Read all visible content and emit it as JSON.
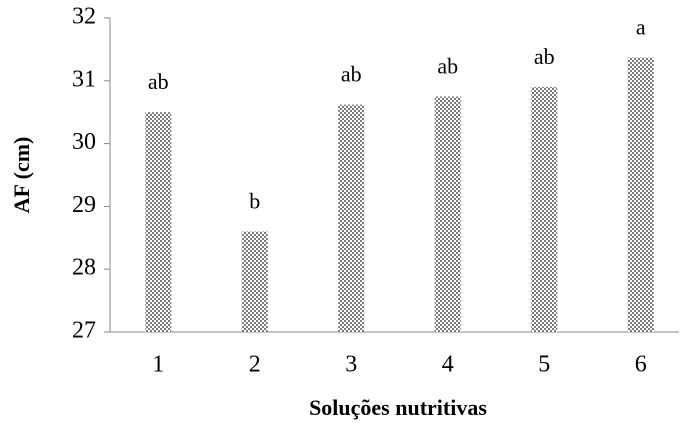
{
  "chart_data": {
    "type": "bar",
    "categories": [
      "1",
      "2",
      "3",
      "4",
      "5",
      "6"
    ],
    "values": [
      30.5,
      28.6,
      30.62,
      30.75,
      30.9,
      31.37
    ],
    "annotations": [
      "ab",
      "b",
      "ab",
      "ab",
      "ab",
      "a"
    ],
    "color": "#7a7a7a",
    "xlabel": "Soluções nutritivas",
    "ylabel": "AF (cm)",
    "ylim": [
      27,
      32
    ],
    "yticks": [
      27,
      28,
      29,
      30,
      31,
      32
    ]
  }
}
